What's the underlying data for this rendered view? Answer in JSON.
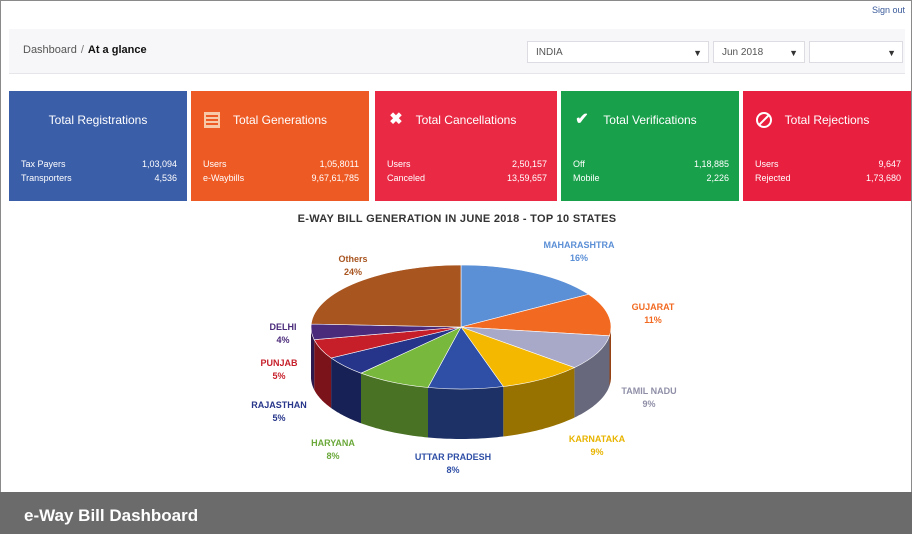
{
  "toplink": "Sign out",
  "breadcrumb": {
    "root": "Dashboard",
    "sep": "/",
    "current": "At a glance"
  },
  "filters": {
    "state": "INDIA",
    "month": "Jun 2018"
  },
  "cards": [
    {
      "title": "Total Registrations",
      "icon": "",
      "color": "#3b5ea8",
      "rows": [
        {
          "label": "Tax Payers",
          "value": "1,03,094"
        },
        {
          "label": "Transporters",
          "value": "4,536"
        }
      ]
    },
    {
      "title": "Total Generations",
      "icon": "list-icon",
      "color": "#ee5a24",
      "rows": [
        {
          "label": "Users",
          "value": "1,05,8011"
        },
        {
          "label": "e-Waybills",
          "value": "9,67,61,785"
        }
      ]
    },
    {
      "title": "Total Cancellations",
      "icon": "close-icon",
      "color": "#ea2a45",
      "rows": [
        {
          "label": "Users",
          "value": "2,50,157"
        },
        {
          "label": "Canceled",
          "value": "13,59,657"
        }
      ]
    },
    {
      "title": "Total Verifications",
      "icon": "check-icon",
      "color": "#18a04a",
      "rows": [
        {
          "label": "Off",
          "value": "1,18,885"
        },
        {
          "label": "Mobile",
          "value": "2,226"
        }
      ]
    },
    {
      "title": "Total Rejections",
      "icon": "ban-icon",
      "color": "#e81f3f",
      "rows": [
        {
          "label": "Users",
          "value": "9,647"
        },
        {
          "label": "Rejected",
          "value": "1,73,680"
        }
      ]
    }
  ],
  "chart_data": {
    "type": "pie",
    "title": "E-WAY BILL GENERATION IN JUNE 2018 - TOP 10 STATES",
    "slices": [
      {
        "label": "MAHARASHTRA",
        "value": 16,
        "color": "#5b8fd6"
      },
      {
        "label": "GUJARAT",
        "value": 11,
        "color": "#f26a21"
      },
      {
        "label": "TAMIL NADU",
        "value": 9,
        "color": "#a8a8c8"
      },
      {
        "label": "KARNATAKA",
        "value": 9,
        "color": "#f5b800"
      },
      {
        "label": "UTTAR PRADESH",
        "value": 8,
        "color": "#2f4fa6"
      },
      {
        "label": "HARYANA",
        "value": 8,
        "color": "#78b83c"
      },
      {
        "label": "RAJASTHAN",
        "value": 5,
        "color": "#26358a"
      },
      {
        "label": "PUNJAB",
        "value": 5,
        "color": "#c61f2a"
      },
      {
        "label": "DELHI",
        "value": 4,
        "color": "#4a2a7a"
      },
      {
        "label": "Others",
        "value": 24,
        "color": "#a85520"
      }
    ],
    "labels": [
      {
        "name": "MAHARASHTRA",
        "pct": "16%",
        "color": "#5b8fd6"
      },
      {
        "name": "GUJARAT",
        "pct": "11%",
        "color": "#f26a21"
      },
      {
        "name": "TAMIL NADU",
        "pct": "9%",
        "color": "#8f8fa8"
      },
      {
        "name": "KARNATAKA",
        "pct": "9%",
        "color": "#e8b400"
      },
      {
        "name": "UTTAR PRADESH",
        "pct": "8%",
        "color": "#2f4fa6"
      },
      {
        "name": "HARYANA",
        "pct": "8%",
        "color": "#6aa83a"
      },
      {
        "name": "RAJASTHAN",
        "pct": "5%",
        "color": "#26358a"
      },
      {
        "name": "PUNJAB",
        "pct": "5%",
        "color": "#c61f2a"
      },
      {
        "name": "DELHI",
        "pct": "4%",
        "color": "#4a2a7a"
      },
      {
        "name": "Others",
        "pct": "24%",
        "color": "#a85520"
      }
    ]
  },
  "caption": "e-Way Bill Dashboard"
}
